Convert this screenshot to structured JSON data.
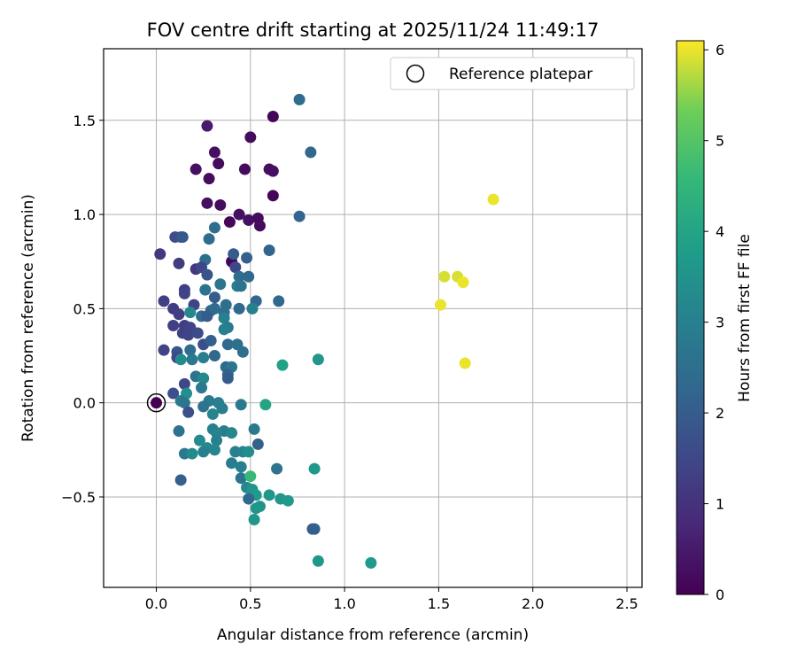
{
  "chart_data": {
    "type": "scatter",
    "title": "FOV centre drift starting at 2025/11/24 11:49:17",
    "xlabel": "Angular distance from reference (arcmin)",
    "ylabel": "Rotation from reference (arcmin)",
    "xlim": [
      -0.28,
      2.58
    ],
    "ylim": [
      -0.98,
      1.88
    ],
    "xticks": [
      0.0,
      0.5,
      1.0,
      1.5,
      2.0,
      2.5
    ],
    "xtick_labels": [
      "0.0",
      "0.5",
      "1.0",
      "1.5",
      "2.0",
      "2.5"
    ],
    "yticks": [
      -0.5,
      0.0,
      0.5,
      1.0,
      1.5
    ],
    "ytick_labels": [
      "−0.5",
      "0.0",
      "0.5",
      "1.0",
      "1.5"
    ],
    "grid": true,
    "legend": {
      "position": "top-right",
      "label": "Reference platepar"
    },
    "reference_point": {
      "x": 0.0,
      "y": 0.0
    },
    "colorbar": {
      "label": "Hours from first FF file",
      "range": [
        0,
        6.1
      ],
      "ticks": [
        0,
        1,
        2,
        3,
        4,
        5,
        6
      ],
      "tick_labels": [
        "0",
        "1",
        "2",
        "3",
        "4",
        "5",
        "6"
      ],
      "colormap": "viridis"
    },
    "points": [
      {
        "x": 0.0,
        "y": 0.0,
        "c": 0.0
      },
      {
        "x": 0.62,
        "y": 1.52,
        "c": 0.1
      },
      {
        "x": 0.27,
        "y": 1.47,
        "c": 0.5
      },
      {
        "x": 0.5,
        "y": 1.41,
        "c": 0.2
      },
      {
        "x": 0.31,
        "y": 1.33,
        "c": 0.3
      },
      {
        "x": 0.33,
        "y": 1.27,
        "c": 0.2
      },
      {
        "x": 0.21,
        "y": 1.24,
        "c": 0.3
      },
      {
        "x": 0.47,
        "y": 1.24,
        "c": 0.2
      },
      {
        "x": 0.6,
        "y": 1.24,
        "c": 0.3
      },
      {
        "x": 0.62,
        "y": 1.23,
        "c": 0.3
      },
      {
        "x": 0.28,
        "y": 1.19,
        "c": 0.2
      },
      {
        "x": 0.62,
        "y": 1.1,
        "c": 0.1
      },
      {
        "x": 0.27,
        "y": 1.06,
        "c": 0.3
      },
      {
        "x": 0.34,
        "y": 1.05,
        "c": 0.2
      },
      {
        "x": 0.44,
        "y": 1.0,
        "c": 0.3
      },
      {
        "x": 0.49,
        "y": 0.97,
        "c": 0.3
      },
      {
        "x": 0.54,
        "y": 0.98,
        "c": 0.2
      },
      {
        "x": 0.39,
        "y": 0.96,
        "c": 0.1
      },
      {
        "x": 0.55,
        "y": 0.94,
        "c": 0.2
      },
      {
        "x": 0.4,
        "y": 0.75,
        "c": 0.1
      },
      {
        "x": 0.76,
        "y": 1.61,
        "c": 2.4
      },
      {
        "x": 0.82,
        "y": 1.33,
        "c": 2.3
      },
      {
        "x": 0.76,
        "y": 0.99,
        "c": 2.2
      },
      {
        "x": 0.31,
        "y": 0.93,
        "c": 2.5
      },
      {
        "x": 0.1,
        "y": 0.88,
        "c": 1.6
      },
      {
        "x": 0.13,
        "y": 0.88,
        "c": 1.7
      },
      {
        "x": 0.14,
        "y": 0.88,
        "c": 1.9
      },
      {
        "x": 0.28,
        "y": 0.87,
        "c": 2.4
      },
      {
        "x": 0.6,
        "y": 0.81,
        "c": 2.2
      },
      {
        "x": 0.02,
        "y": 0.79,
        "c": 1.1
      },
      {
        "x": 0.41,
        "y": 0.79,
        "c": 2.0
      },
      {
        "x": 0.48,
        "y": 0.77,
        "c": 2.1
      },
      {
        "x": 0.26,
        "y": 0.76,
        "c": 2.5
      },
      {
        "x": 0.12,
        "y": 0.74,
        "c": 1.2
      },
      {
        "x": 0.21,
        "y": 0.71,
        "c": 1.1
      },
      {
        "x": 0.24,
        "y": 0.72,
        "c": 1.5
      },
      {
        "x": 0.42,
        "y": 0.72,
        "c": 1.5
      },
      {
        "x": 0.27,
        "y": 0.68,
        "c": 1.8
      },
      {
        "x": 0.44,
        "y": 0.67,
        "c": 2.4
      },
      {
        "x": 0.49,
        "y": 0.67,
        "c": 2.3
      },
      {
        "x": 0.34,
        "y": 0.63,
        "c": 2.7
      },
      {
        "x": 0.43,
        "y": 0.62,
        "c": 2.9
      },
      {
        "x": 0.45,
        "y": 0.62,
        "c": 2.6
      },
      {
        "x": 0.15,
        "y": 0.6,
        "c": 1.3
      },
      {
        "x": 0.26,
        "y": 0.6,
        "c": 2.6
      },
      {
        "x": 0.15,
        "y": 0.58,
        "c": 1.4
      },
      {
        "x": 0.31,
        "y": 0.56,
        "c": 2.0
      },
      {
        "x": 0.04,
        "y": 0.54,
        "c": 1.3
      },
      {
        "x": 0.2,
        "y": 0.52,
        "c": 1.4
      },
      {
        "x": 0.37,
        "y": 0.52,
        "c": 2.5
      },
      {
        "x": 0.53,
        "y": 0.54,
        "c": 2.3
      },
      {
        "x": 0.65,
        "y": 0.54,
        "c": 2.3
      },
      {
        "x": 0.09,
        "y": 0.5,
        "c": 1.2
      },
      {
        "x": 0.12,
        "y": 0.47,
        "c": 1.3
      },
      {
        "x": 0.18,
        "y": 0.48,
        "c": 3.2
      },
      {
        "x": 0.29,
        "y": 0.49,
        "c": 2.2
      },
      {
        "x": 0.31,
        "y": 0.5,
        "c": 2.4
      },
      {
        "x": 0.36,
        "y": 0.48,
        "c": 2.5
      },
      {
        "x": 0.44,
        "y": 0.5,
        "c": 2.3
      },
      {
        "x": 0.51,
        "y": 0.5,
        "c": 3.0
      },
      {
        "x": 0.24,
        "y": 0.46,
        "c": 2.4
      },
      {
        "x": 0.27,
        "y": 0.46,
        "c": 2.0
      },
      {
        "x": 0.36,
        "y": 0.45,
        "c": 3.0
      },
      {
        "x": 0.09,
        "y": 0.41,
        "c": 1.3
      },
      {
        "x": 0.15,
        "y": 0.41,
        "c": 1.3
      },
      {
        "x": 0.18,
        "y": 0.4,
        "c": 1.4
      },
      {
        "x": 0.38,
        "y": 0.4,
        "c": 2.8
      },
      {
        "x": 0.14,
        "y": 0.37,
        "c": 1.3
      },
      {
        "x": 0.17,
        "y": 0.36,
        "c": 1.4
      },
      {
        "x": 0.22,
        "y": 0.37,
        "c": 1.6
      },
      {
        "x": 0.36,
        "y": 0.39,
        "c": 3.0
      },
      {
        "x": 0.25,
        "y": 0.31,
        "c": 1.7
      },
      {
        "x": 0.29,
        "y": 0.33,
        "c": 2.1
      },
      {
        "x": 0.38,
        "y": 0.31,
        "c": 2.3
      },
      {
        "x": 0.43,
        "y": 0.31,
        "c": 2.5
      },
      {
        "x": 0.04,
        "y": 0.28,
        "c": 1.4
      },
      {
        "x": 0.11,
        "y": 0.27,
        "c": 1.8
      },
      {
        "x": 0.18,
        "y": 0.28,
        "c": 2.4
      },
      {
        "x": 0.46,
        "y": 0.27,
        "c": 2.5
      },
      {
        "x": 0.11,
        "y": 0.24,
        "c": 1.5
      },
      {
        "x": 0.13,
        "y": 0.23,
        "c": 3.3
      },
      {
        "x": 0.19,
        "y": 0.23,
        "c": 2.8
      },
      {
        "x": 0.25,
        "y": 0.24,
        "c": 2.9
      },
      {
        "x": 0.31,
        "y": 0.25,
        "c": 2.3
      },
      {
        "x": 0.37,
        "y": 0.19,
        "c": 2.3
      },
      {
        "x": 0.4,
        "y": 0.19,
        "c": 2.7
      },
      {
        "x": 0.38,
        "y": 0.15,
        "c": 2.2
      },
      {
        "x": 0.21,
        "y": 0.14,
        "c": 2.6
      },
      {
        "x": 0.25,
        "y": 0.13,
        "c": 3.2
      },
      {
        "x": 0.38,
        "y": 0.13,
        "c": 2.0
      },
      {
        "x": 0.15,
        "y": 0.1,
        "c": 1.5
      },
      {
        "x": 0.24,
        "y": 0.08,
        "c": 2.8
      },
      {
        "x": 0.09,
        "y": 0.05,
        "c": 1.7
      },
      {
        "x": 0.16,
        "y": 0.05,
        "c": 3.4
      },
      {
        "x": 0.13,
        "y": 0.01,
        "c": 2.8
      },
      {
        "x": 0.28,
        "y": 0.01,
        "c": 2.8
      },
      {
        "x": 0.15,
        "y": 0.0,
        "c": 2.7
      },
      {
        "x": 0.33,
        "y": 0.0,
        "c": 3.0
      },
      {
        "x": 0.45,
        "y": -0.01,
        "c": 2.8
      },
      {
        "x": 0.25,
        "y": -0.02,
        "c": 2.6
      },
      {
        "x": 0.35,
        "y": -0.03,
        "c": 2.9
      },
      {
        "x": 0.17,
        "y": -0.05,
        "c": 1.7
      },
      {
        "x": 0.3,
        "y": -0.06,
        "c": 3.1
      },
      {
        "x": 0.12,
        "y": -0.15,
        "c": 2.6
      },
      {
        "x": 0.3,
        "y": -0.14,
        "c": 3.0
      },
      {
        "x": 0.52,
        "y": -0.14,
        "c": 2.8
      },
      {
        "x": 0.36,
        "y": -0.15,
        "c": 2.9
      },
      {
        "x": 0.32,
        "y": -0.16,
        "c": 3.1
      },
      {
        "x": 0.4,
        "y": -0.16,
        "c": 3.2
      },
      {
        "x": 0.23,
        "y": -0.2,
        "c": 3.3
      },
      {
        "x": 0.32,
        "y": -0.2,
        "c": 3.0
      },
      {
        "x": 0.54,
        "y": -0.22,
        "c": 2.1
      },
      {
        "x": 0.27,
        "y": -0.24,
        "c": 3.2
      },
      {
        "x": 0.15,
        "y": -0.27,
        "c": 2.8
      },
      {
        "x": 0.19,
        "y": -0.27,
        "c": 3.3
      },
      {
        "x": 0.25,
        "y": -0.26,
        "c": 3.0
      },
      {
        "x": 0.31,
        "y": -0.25,
        "c": 3.1
      },
      {
        "x": 0.42,
        "y": -0.26,
        "c": 3.0
      },
      {
        "x": 0.46,
        "y": -0.26,
        "c": 3.1
      },
      {
        "x": 0.49,
        "y": -0.26,
        "c": 3.4
      },
      {
        "x": 0.4,
        "y": -0.32,
        "c": 2.9
      },
      {
        "x": 0.45,
        "y": -0.34,
        "c": 3.0
      },
      {
        "x": 0.64,
        "y": -0.35,
        "c": 2.6
      },
      {
        "x": 0.84,
        "y": -0.35,
        "c": 3.6
      },
      {
        "x": 0.13,
        "y": -0.41,
        "c": 2.1
      },
      {
        "x": 0.45,
        "y": -0.4,
        "c": 2.7
      },
      {
        "x": 0.5,
        "y": -0.39,
        "c": 4.6
      },
      {
        "x": 0.48,
        "y": -0.45,
        "c": 3.2
      },
      {
        "x": 0.51,
        "y": -0.46,
        "c": 3.6
      },
      {
        "x": 0.53,
        "y": -0.49,
        "c": 3.7
      },
      {
        "x": 0.6,
        "y": -0.49,
        "c": 3.6
      },
      {
        "x": 0.66,
        "y": -0.51,
        "c": 3.6
      },
      {
        "x": 0.7,
        "y": -0.52,
        "c": 3.7
      },
      {
        "x": 0.49,
        "y": -0.51,
        "c": 2.3
      },
      {
        "x": 0.55,
        "y": -0.55,
        "c": 3.5
      },
      {
        "x": 0.53,
        "y": -0.56,
        "c": 3.6
      },
      {
        "x": 0.52,
        "y": -0.62,
        "c": 3.6
      },
      {
        "x": 0.83,
        "y": -0.67,
        "c": 1.9
      },
      {
        "x": 0.84,
        "y": -0.67,
        "c": 2.1
      },
      {
        "x": 0.86,
        "y": -0.84,
        "c": 3.6
      },
      {
        "x": 1.14,
        "y": -0.85,
        "c": 3.7
      },
      {
        "x": 0.58,
        "y": -0.01,
        "c": 4.0
      },
      {
        "x": 0.67,
        "y": 0.2,
        "c": 3.9
      },
      {
        "x": 0.86,
        "y": 0.23,
        "c": 3.6
      },
      {
        "x": 1.79,
        "y": 1.08,
        "c": 6.0
      },
      {
        "x": 1.53,
        "y": 0.67,
        "c": 5.9
      },
      {
        "x": 1.6,
        "y": 0.67,
        "c": 5.9
      },
      {
        "x": 1.63,
        "y": 0.64,
        "c": 6.0
      },
      {
        "x": 1.51,
        "y": 0.52,
        "c": 6.0
      },
      {
        "x": 1.64,
        "y": 0.21,
        "c": 6.0
      }
    ]
  }
}
